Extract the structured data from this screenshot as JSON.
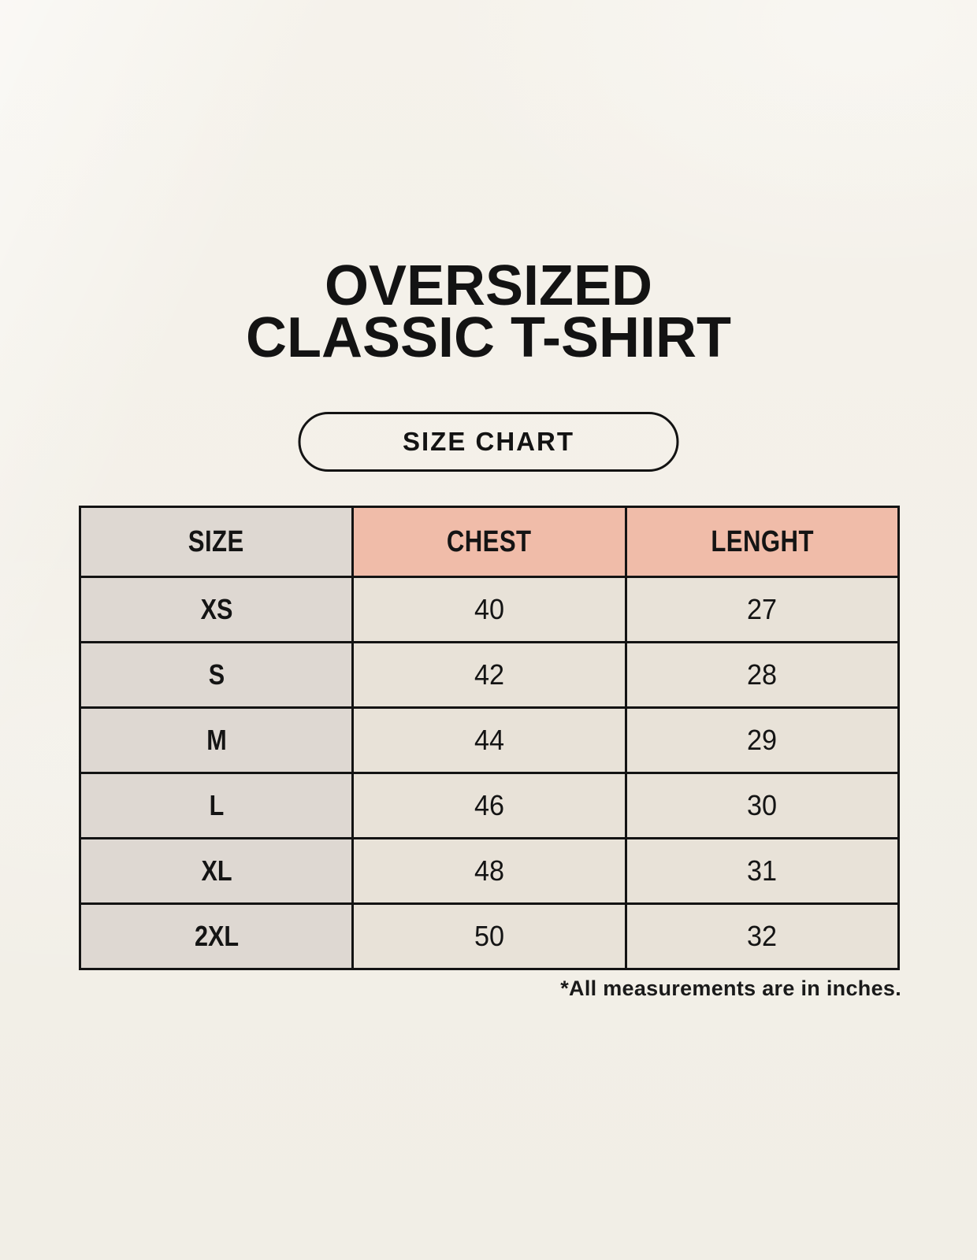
{
  "title": {
    "line1": "OVERSIZED",
    "line2": "CLASSIC T-SHIRT"
  },
  "badge": {
    "label": "SIZE CHART"
  },
  "table": {
    "headers": {
      "size": "SIZE",
      "chest": "CHEST",
      "length": "LENGHT"
    },
    "rows": [
      {
        "size": "XS",
        "chest": "40",
        "length": "27"
      },
      {
        "size": "S",
        "chest": "42",
        "length": "28"
      },
      {
        "size": "M",
        "chest": "44",
        "length": "29"
      },
      {
        "size": "L",
        "chest": "46",
        "length": "30"
      },
      {
        "size": "XL",
        "chest": "48",
        "length": "31"
      },
      {
        "size": "2XL",
        "chest": "50",
        "length": "32"
      }
    ]
  },
  "footnote": "*All measurements are in inches.",
  "colors": {
    "page_background": "#F3F0E9",
    "size_column_background": "#DED8D2",
    "measure_header_background": "#F0BCA9",
    "value_cell_background": "#E8E2D8",
    "table_border": "#131313",
    "text": "#141414"
  },
  "chart_data": {
    "type": "table",
    "title": "OVERSIZED CLASSIC T-SHIRT — SIZE CHART",
    "columns": [
      "SIZE",
      "CHEST",
      "LENGHT"
    ],
    "rows": [
      [
        "XS",
        40,
        27
      ],
      [
        "S",
        42,
        28
      ],
      [
        "M",
        44,
        29
      ],
      [
        "L",
        46,
        30
      ],
      [
        "XL",
        48,
        31
      ],
      [
        "2XL",
        50,
        32
      ]
    ],
    "note": "*All measurements are in inches."
  }
}
